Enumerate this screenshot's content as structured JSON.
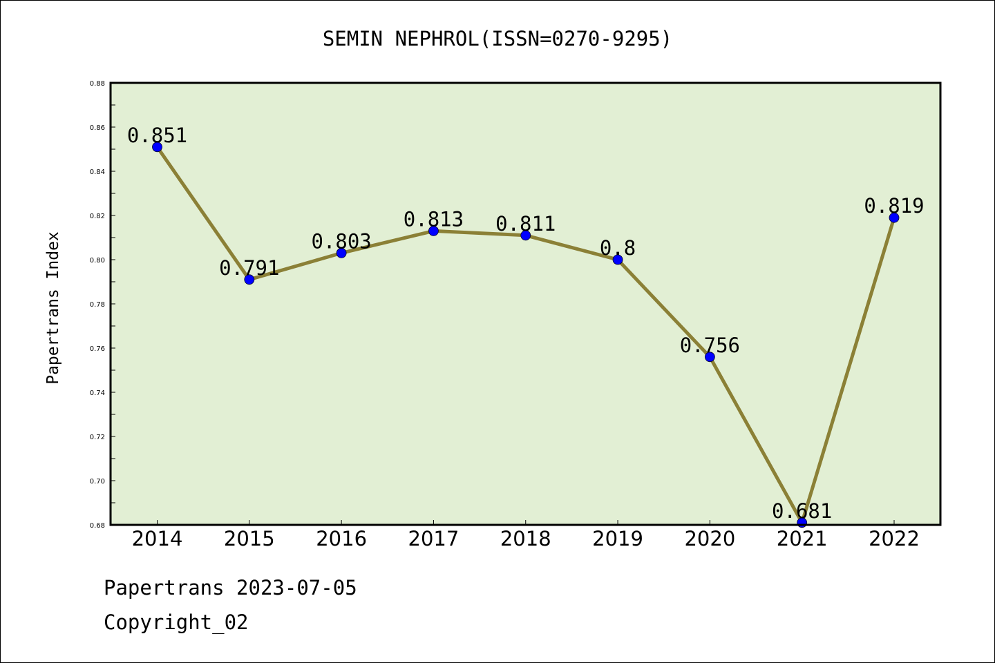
{
  "chart_data": {
    "type": "line",
    "title": "SEMIN NEPHROL(ISSN=0270-9295)",
    "xlabel": "",
    "ylabel": "Papertrans Index",
    "categories": [
      "2014",
      "2015",
      "2016",
      "2017",
      "2018",
      "2019",
      "2020",
      "2021",
      "2022"
    ],
    "values": [
      0.851,
      0.791,
      0.803,
      0.813,
      0.811,
      0.8,
      0.756,
      0.681,
      0.819
    ],
    "data_labels": [
      "0.851",
      "0.791",
      "0.803",
      "0.813",
      "0.811",
      "0.8",
      "0.756",
      "0.681",
      "0.819"
    ],
    "ylim": [
      0.68,
      0.88
    ],
    "yticks": [
      "0.68",
      "0.70",
      "0.72",
      "0.74",
      "0.76",
      "0.78",
      "0.80",
      "0.82",
      "0.84",
      "0.86",
      "0.88"
    ],
    "grid": false,
    "colors": {
      "plot_background": "#e2efd4",
      "line": "#8b8036",
      "marker": "#0000ff"
    }
  },
  "footer": {
    "source_date": "Papertrans 2023-07-05",
    "copyright": "Copyright_02"
  }
}
